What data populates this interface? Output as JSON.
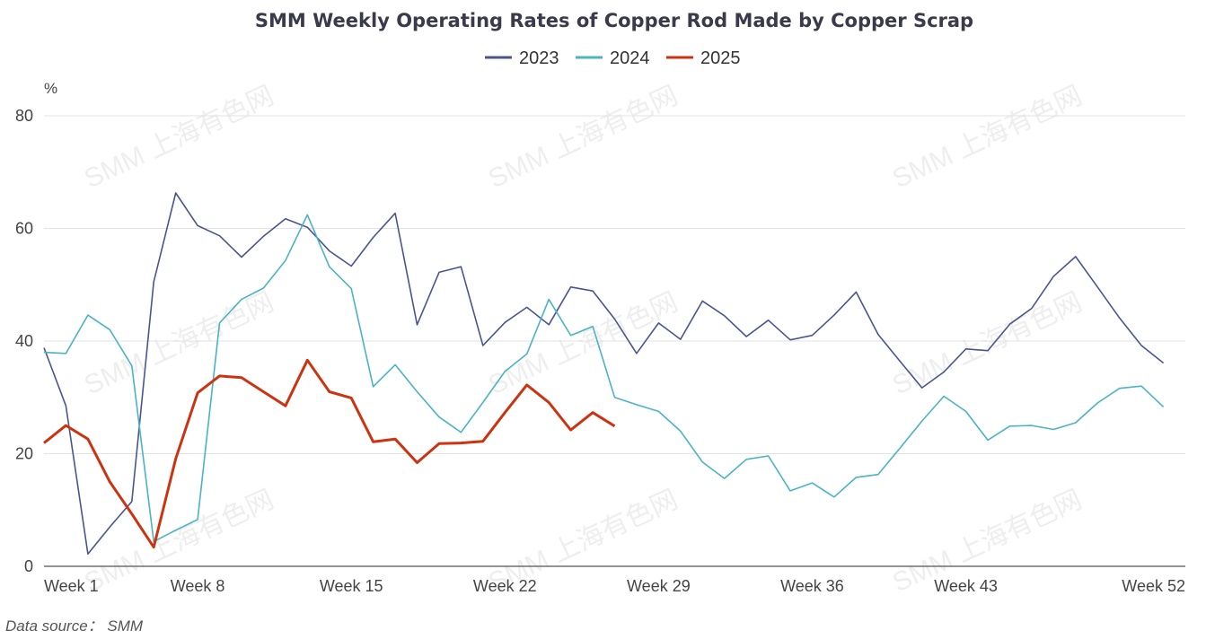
{
  "chart_data": {
    "type": "line",
    "title": "SMM Weekly Operating Rates of Copper Rod Made by Copper Scrap",
    "ylabel": "%",
    "source": "Data source： SMM",
    "watermark": "SMM 上海有色网",
    "ylim": [
      0,
      80
    ],
    "yticks": [
      0,
      20,
      40,
      60,
      80
    ],
    "x_range": [
      1,
      53
    ],
    "xticks": [
      {
        "week": 1,
        "label": "Week 1"
      },
      {
        "week": 8,
        "label": "Week 8"
      },
      {
        "week": 15,
        "label": "Week 15"
      },
      {
        "week": 22,
        "label": "Week 22"
      },
      {
        "week": 29,
        "label": "Week 29"
      },
      {
        "week": 36,
        "label": "Week 36"
      },
      {
        "week": 43,
        "label": "Week 43"
      },
      {
        "week": 52,
        "label": "Week 52"
      }
    ],
    "grid": true,
    "legend_position": "top-center",
    "series": [
      {
        "name": "2023",
        "color": "#4a5590",
        "values": [
          38.8,
          28.5,
          2.2,
          7.0,
          11.5,
          50.5,
          66.3,
          60.5,
          58.7,
          54.9,
          58.6,
          61.7,
          60.2,
          56.0,
          53.3,
          58.4,
          62.7,
          42.9,
          52.2,
          53.2,
          39.2,
          43.3,
          46.0,
          42.9,
          49.6,
          48.9,
          43.9,
          37.8,
          43.2,
          40.3,
          47.1,
          44.5,
          40.8,
          43.7,
          40.2,
          41.0,
          44.6,
          48.7,
          41.2,
          36.4,
          31.7,
          34.5,
          38.6,
          38.3,
          43.0,
          45.8,
          51.5,
          55.0,
          49.6,
          44.1,
          39.2,
          36.1
        ]
      },
      {
        "name": "2024",
        "color": "#4ab3c4",
        "values": [
          38.0,
          37.8,
          44.6,
          42.0,
          35.6,
          4.4,
          6.4,
          8.3,
          43.2,
          47.4,
          49.4,
          54.3,
          62.4,
          53.2,
          49.3,
          31.9,
          35.8,
          31.0,
          26.5,
          23.8,
          29.1,
          34.6,
          37.7,
          47.4,
          41.0,
          42.6,
          30.0,
          28.7,
          27.5,
          24.0,
          18.5,
          15.6,
          19.0,
          19.6,
          13.4,
          14.8,
          12.3,
          15.8,
          16.3,
          21.0,
          25.8,
          30.2,
          27.5,
          22.4,
          24.9,
          25.0,
          24.3,
          25.5,
          29.0,
          31.6,
          32.0,
          28.3
        ]
      },
      {
        "name": "2025",
        "color": "#cc3311",
        "values": [
          21.9,
          25.0,
          22.6,
          15.0,
          9.3,
          3.4,
          19.1,
          30.8,
          33.8,
          33.5,
          31.0,
          28.5,
          36.6,
          31.0,
          29.9,
          22.1,
          22.6,
          18.4,
          21.8,
          21.9,
          22.2,
          27.3,
          32.2,
          29.1,
          24.2,
          27.3,
          24.9
        ]
      }
    ]
  }
}
